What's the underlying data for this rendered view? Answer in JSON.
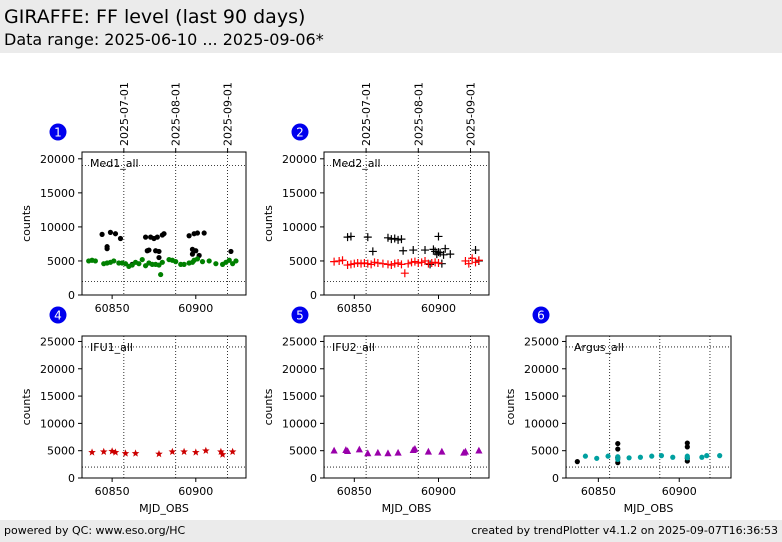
{
  "header": {
    "title": "GIRAFFE: FF level (last 90 days)",
    "subtitle": "Data range: 2025-06-10 ... 2025-09-06*"
  },
  "footer": {
    "left": "powered by QC: www.eso.org/HC",
    "right": "created by trendPlotter v4.1.2 on 2025-09-07T16:36:53"
  },
  "chart_data": [
    {
      "type": "scatter",
      "index_label": "1",
      "panel_label": "Med1_all",
      "xlabel": "",
      "ylabel": "counts",
      "xlim": [
        60832,
        60930
      ],
      "ylim": [
        0,
        21000
      ],
      "xticks": [
        60850,
        60900
      ],
      "yticks": [
        0,
        5000,
        10000,
        15000,
        20000
      ],
      "date_ticks": [
        {
          "mjd": 60857,
          "label": "2025-07-01"
        },
        {
          "mjd": 60888,
          "label": "2025-08-01"
        },
        {
          "mjd": 60919,
          "label": "2025-09-01"
        }
      ],
      "hlines": [
        2000,
        19000
      ],
      "series": [
        {
          "color": "#000000",
          "marker": "dot",
          "points": [
            [
              60844,
              8900
            ],
            [
              60847,
              6800
            ],
            [
              60847,
              7100
            ],
            [
              60849,
              9200
            ],
            [
              60852,
              9000
            ],
            [
              60855,
              8300
            ],
            [
              60862,
              4500
            ],
            [
              60870,
              8500
            ],
            [
              60871,
              6500
            ],
            [
              60872,
              6600
            ],
            [
              60873,
              8500
            ],
            [
              60875,
              8300
            ],
            [
              60876,
              6500
            ],
            [
              60877,
              8500
            ],
            [
              60878,
              5500
            ],
            [
              60878,
              6400
            ],
            [
              60880,
              8800
            ],
            [
              60881,
              9000
            ],
            [
              60896,
              8700
            ],
            [
              60898,
              6700
            ],
            [
              60898,
              6000
            ],
            [
              60899,
              9000
            ],
            [
              60900,
              6500
            ],
            [
              60901,
              9100
            ],
            [
              60902,
              5800
            ],
            [
              60905,
              9100
            ],
            [
              60921,
              6400
            ]
          ]
        },
        {
          "color": "#008000",
          "marker": "dot",
          "points": [
            [
              60836,
              5000
            ],
            [
              60838,
              5100
            ],
            [
              60840,
              5000
            ],
            [
              60845,
              4600
            ],
            [
              60847,
              4700
            ],
            [
              60849,
              4800
            ],
            [
              60851,
              5000
            ],
            [
              60854,
              4700
            ],
            [
              60856,
              4700
            ],
            [
              60858,
              4600
            ],
            [
              60860,
              4200
            ],
            [
              60862,
              4400
            ],
            [
              60864,
              4800
            ],
            [
              60866,
              4600
            ],
            [
              60868,
              5200
            ],
            [
              60870,
              4300
            ],
            [
              60872,
              4700
            ],
            [
              60874,
              4500
            ],
            [
              60876,
              4500
            ],
            [
              60878,
              4400
            ],
            [
              60879,
              3000
            ],
            [
              60880,
              4800
            ],
            [
              60884,
              5200
            ],
            [
              60886,
              5100
            ],
            [
              60888,
              4900
            ],
            [
              60891,
              4500
            ],
            [
              60893,
              4500
            ],
            [
              60896,
              4700
            ],
            [
              60898,
              4800
            ],
            [
              60899,
              5100
            ],
            [
              60901,
              5300
            ],
            [
              60904,
              4900
            ],
            [
              60908,
              5000
            ],
            [
              60912,
              4600
            ],
            [
              60916,
              4500
            ],
            [
              60918,
              4800
            ],
            [
              60920,
              5100
            ],
            [
              60922,
              4600
            ],
            [
              60924,
              5000
            ]
          ]
        }
      ]
    },
    {
      "type": "scatter",
      "index_label": "2",
      "panel_label": "Med2_all",
      "xlabel": "",
      "ylabel": "counts",
      "xlim": [
        60832,
        60930
      ],
      "ylim": [
        0,
        21000
      ],
      "xticks": [
        60850,
        60900
      ],
      "yticks": [
        0,
        5000,
        10000,
        15000,
        20000
      ],
      "date_ticks": [
        {
          "mjd": 60857,
          "label": "2025-07-01"
        },
        {
          "mjd": 60888,
          "label": "2025-08-01"
        },
        {
          "mjd": 60919,
          "label": "2025-09-01"
        }
      ],
      "hlines": [
        2000,
        19000
      ],
      "series": [
        {
          "color": "#000000",
          "marker": "plus",
          "points": [
            [
              60846,
              8500
            ],
            [
              60848,
              8600
            ],
            [
              60858,
              8500
            ],
            [
              60861,
              6400
            ],
            [
              60870,
              8400
            ],
            [
              60872,
              8200
            ],
            [
              60874,
              8300
            ],
            [
              60876,
              8100
            ],
            [
              60878,
              8200
            ],
            [
              60879,
              6500
            ],
            [
              60885,
              6600
            ],
            [
              60892,
              6600
            ],
            [
              60895,
              4500
            ],
            [
              60897,
              6700
            ],
            [
              60898,
              6400
            ],
            [
              60899,
              6000
            ],
            [
              60900,
              8600
            ],
            [
              60900,
              6300
            ],
            [
              60901,
              6200
            ],
            [
              60902,
              4600
            ],
            [
              60903,
              5900
            ],
            [
              60904,
              6800
            ],
            [
              60907,
              6000
            ],
            [
              60922,
              6600
            ],
            [
              60924,
              5000
            ]
          ]
        },
        {
          "color": "#ff0000",
          "marker": "plus",
          "points": [
            [
              60838,
              4900
            ],
            [
              60841,
              5000
            ],
            [
              60843,
              5100
            ],
            [
              60846,
              4400
            ],
            [
              60848,
              4500
            ],
            [
              60850,
              4600
            ],
            [
              60852,
              4700
            ],
            [
              60854,
              4600
            ],
            [
              60856,
              4700
            ],
            [
              60858,
              4600
            ],
            [
              60860,
              4500
            ],
            [
              60862,
              4800
            ],
            [
              60864,
              4700
            ],
            [
              60867,
              4600
            ],
            [
              60870,
              4500
            ],
            [
              60872,
              4400
            ],
            [
              60874,
              4600
            ],
            [
              60876,
              4700
            ],
            [
              60878,
              4500
            ],
            [
              60880,
              3200
            ],
            [
              60882,
              4600
            ],
            [
              60884,
              4800
            ],
            [
              60886,
              4900
            ],
            [
              60888,
              4700
            ],
            [
              60890,
              4800
            ],
            [
              60892,
              5000
            ],
            [
              60894,
              4600
            ],
            [
              60896,
              4700
            ],
            [
              60898,
              4800
            ],
            [
              60900,
              4700
            ],
            [
              60916,
              5000
            ],
            [
              60918,
              4600
            ],
            [
              60920,
              5400
            ],
            [
              60922,
              4800
            ],
            [
              60924,
              5100
            ]
          ]
        }
      ]
    },
    {
      "type": "scatter",
      "index_label": "4",
      "panel_label": "IFU1_all",
      "xlabel": "MJD_OBS",
      "ylabel": "counts",
      "xlim": [
        60832,
        60930
      ],
      "ylim": [
        0,
        26000
      ],
      "xticks": [
        60850,
        60900
      ],
      "yticks": [
        0,
        5000,
        10000,
        15000,
        20000,
        25000
      ],
      "vlines": [
        60857,
        60888,
        60919
      ],
      "hlines": [
        2000,
        24000
      ],
      "series": [
        {
          "color": "#cc0000",
          "marker": "star",
          "points": [
            [
              60838,
              4700
            ],
            [
              60845,
              4800
            ],
            [
              60850,
              4900
            ],
            [
              60852,
              4700
            ],
            [
              60858,
              4500
            ],
            [
              60864,
              4500
            ],
            [
              60878,
              4400
            ],
            [
              60886,
              4800
            ],
            [
              60893,
              4800
            ],
            [
              60900,
              4700
            ],
            [
              60906,
              5000
            ],
            [
              60915,
              4800
            ],
            [
              60916,
              4300
            ],
            [
              60922,
              4800
            ]
          ]
        }
      ]
    },
    {
      "type": "scatter",
      "index_label": "5",
      "panel_label": "IFU2_all",
      "xlabel": "MJD_OBS",
      "ylabel": "counts",
      "xlim": [
        60832,
        60930
      ],
      "ylim": [
        0,
        26000
      ],
      "xticks": [
        60850,
        60900
      ],
      "yticks": [
        0,
        5000,
        10000,
        15000,
        20000,
        25000
      ],
      "vlines": [
        60857,
        60888,
        60919
      ],
      "hlines": [
        2000,
        24000
      ],
      "series": [
        {
          "color": "#9900aa",
          "marker": "triangle",
          "points": [
            [
              60838,
              5000
            ],
            [
              60845,
              5100
            ],
            [
              60846,
              4900
            ],
            [
              60853,
              5200
            ],
            [
              60858,
              4500
            ],
            [
              60864,
              4600
            ],
            [
              60870,
              4500
            ],
            [
              60876,
              4600
            ],
            [
              60885,
              5100
            ],
            [
              60886,
              5300
            ],
            [
              60894,
              4800
            ],
            [
              60902,
              4800
            ],
            [
              60915,
              4600
            ],
            [
              60916,
              4800
            ],
            [
              60924,
              5000
            ]
          ]
        }
      ]
    },
    {
      "type": "scatter",
      "index_label": "6",
      "panel_label": "Argus_all",
      "xlabel": "MJD_OBS",
      "ylabel": "counts",
      "xlim": [
        60830,
        60932
      ],
      "ylim": [
        0,
        26000
      ],
      "xticks": [
        60850,
        60900
      ],
      "yticks": [
        0,
        5000,
        10000,
        15000,
        20000,
        25000
      ],
      "vlines": [
        60857,
        60888,
        60919
      ],
      "hlines": [
        2000,
        24000
      ],
      "series": [
        {
          "color": "#000000",
          "marker": "dot",
          "points": [
            [
              60837,
              3000
            ],
            [
              60862,
              6300
            ],
            [
              60862,
              5300
            ],
            [
              60862,
              3700
            ],
            [
              60862,
              2800
            ],
            [
              60905,
              6400
            ],
            [
              60905,
              5700
            ],
            [
              60905,
              3600
            ],
            [
              60905,
              3100
            ]
          ]
        },
        {
          "color": "#00a0a0",
          "marker": "dot",
          "points": [
            [
              60842,
              4000
            ],
            [
              60849,
              3600
            ],
            [
              60856,
              4000
            ],
            [
              60862,
              3900
            ],
            [
              60862,
              3400
            ],
            [
              60869,
              3700
            ],
            [
              60876,
              3800
            ],
            [
              60883,
              4000
            ],
            [
              60889,
              4100
            ],
            [
              60896,
              3800
            ],
            [
              60905,
              4000
            ],
            [
              60905,
              3700
            ],
            [
              60914,
              3800
            ],
            [
              60917,
              4100
            ],
            [
              60925,
              4100
            ]
          ]
        }
      ]
    }
  ]
}
